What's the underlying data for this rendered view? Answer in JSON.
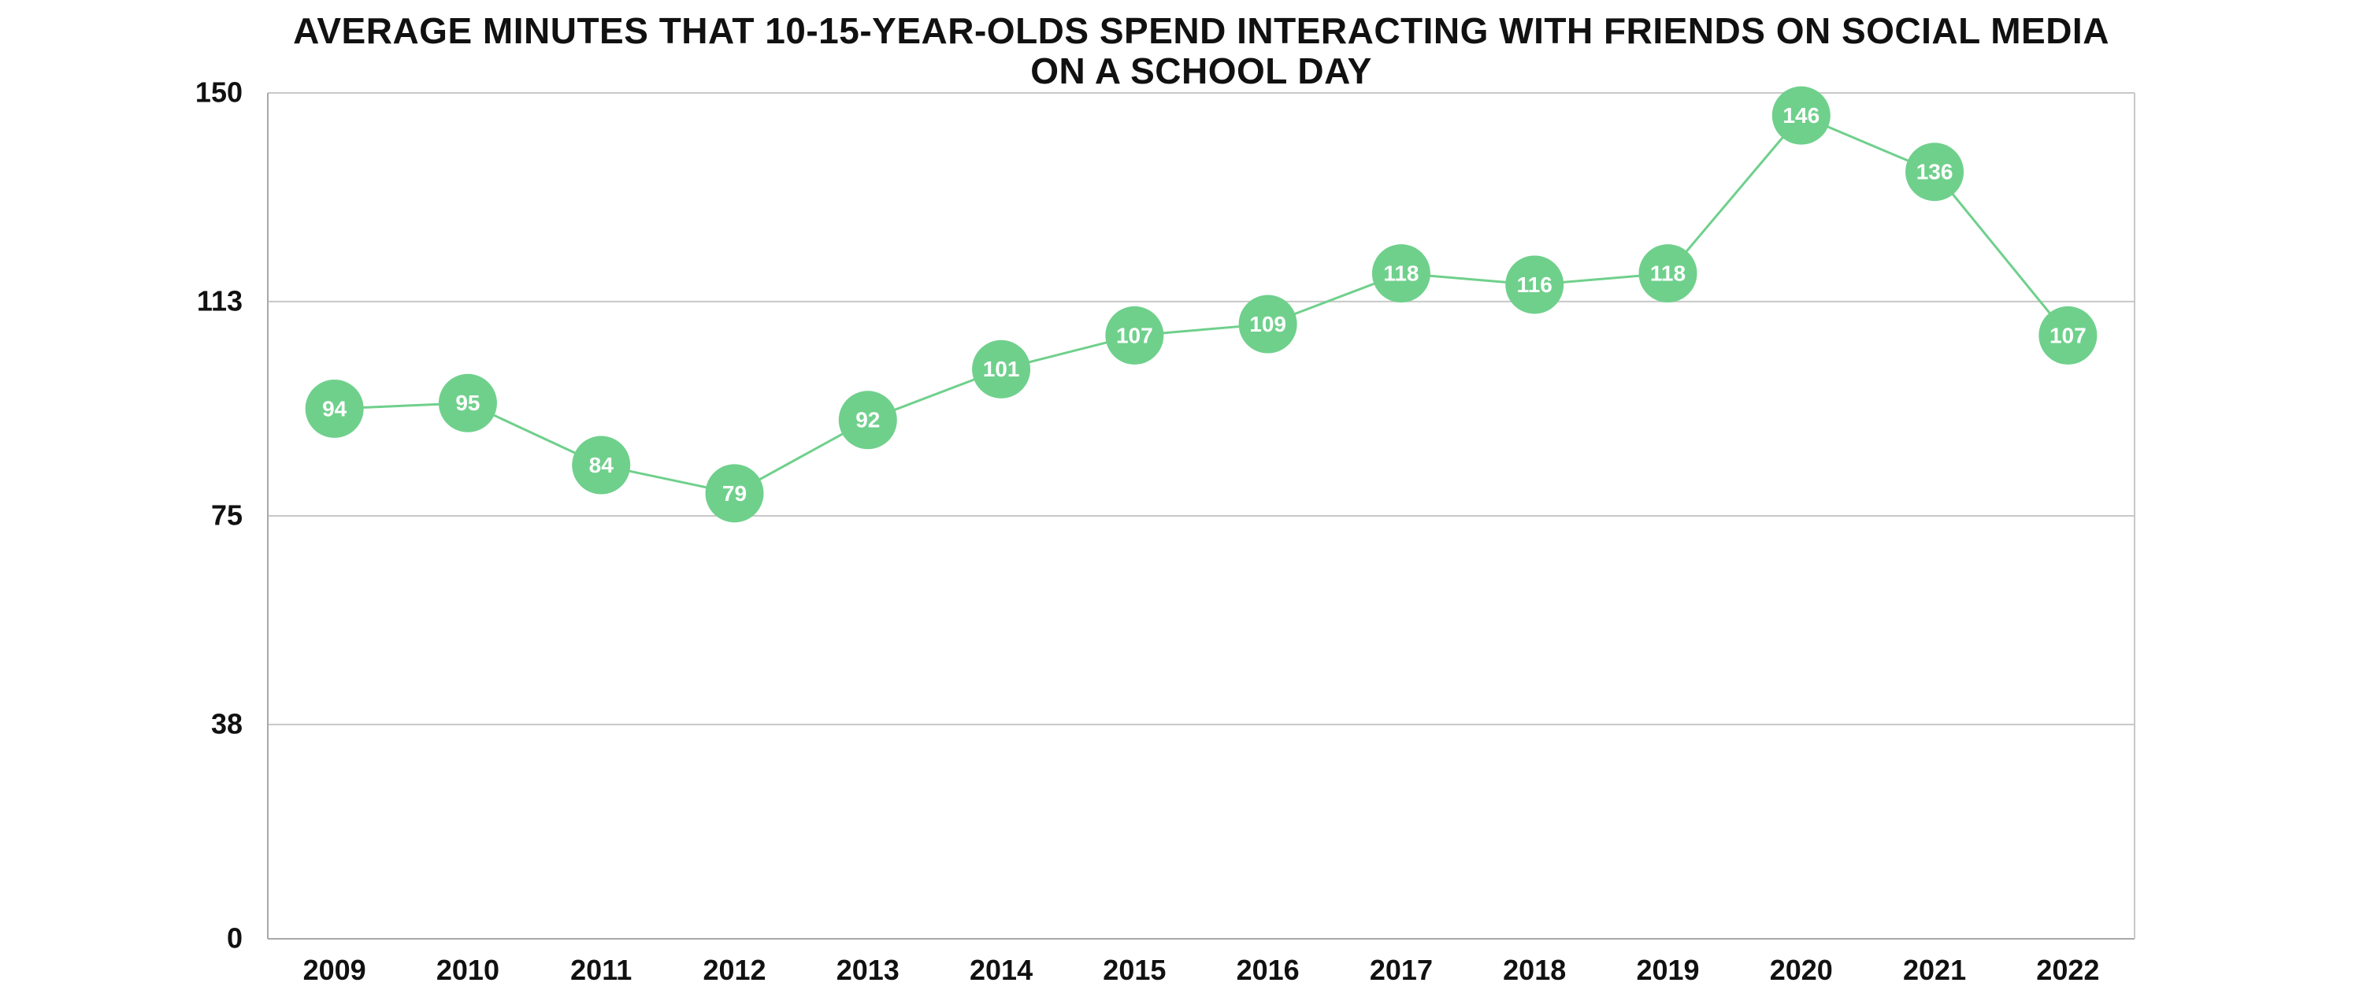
{
  "chart_data": {
    "type": "line",
    "title": "AVERAGE MINUTES THAT 10-15-YEAR-OLDS SPEND INTERACTING WITH FRIENDS ON SOCIAL MEDIA ON A SCHOOL DAY",
    "categories": [
      "2009",
      "2010",
      "2011",
      "2012",
      "2013",
      "2014",
      "2015",
      "2016",
      "2017",
      "2018",
      "2019",
      "2020",
      "2021",
      "2022"
    ],
    "values": [
      94,
      95,
      84,
      79,
      92,
      101,
      107,
      109,
      118,
      116,
      118,
      146,
      136,
      107
    ],
    "xlabel": "",
    "ylabel": "",
    "ylim": [
      0,
      150
    ],
    "yticks": [
      0,
      38,
      75,
      113,
      150
    ],
    "grid": true,
    "legend_position": "none",
    "colors": {
      "accent": "#6fd08c",
      "marker_text": "#ffffff",
      "grid": "#c8c8c8",
      "axis": "#a8a8a8",
      "text": "#111111",
      "background": "#ffffff"
    }
  }
}
